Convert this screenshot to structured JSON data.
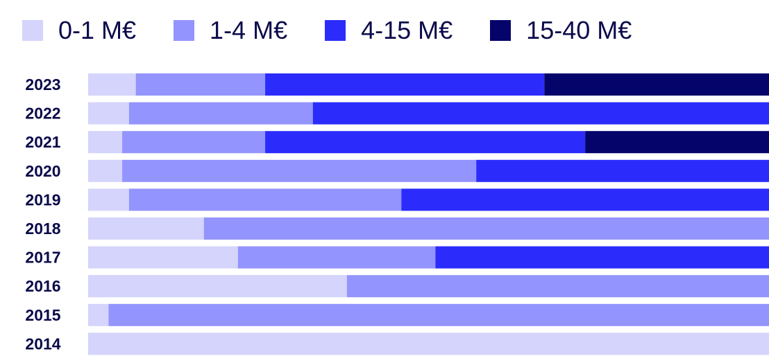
{
  "chart_data": {
    "type": "bar",
    "orientation": "horizontal",
    "stacked": true,
    "categories": [
      "2023",
      "2022",
      "2021",
      "2020",
      "2019",
      "2018",
      "2017",
      "2016",
      "2015",
      "2014"
    ],
    "series": [
      {
        "name": "0-1 M€",
        "color": "#d4d4fc",
        "values": [
          7,
          6,
          5,
          5,
          6,
          17,
          22,
          38,
          3,
          100
        ]
      },
      {
        "name": "1-4 M€",
        "color": "#9394fd",
        "values": [
          19,
          27,
          21,
          52,
          40,
          83,
          29,
          62,
          97,
          0
        ]
      },
      {
        "name": "4-15 M€",
        "color": "#2b2cfb",
        "values": [
          41,
          67,
          47,
          43,
          54,
          0,
          49,
          0,
          0,
          0
        ]
      },
      {
        "name": "15-40 M€",
        "color": "#05046b",
        "values": [
          33,
          0,
          27,
          0,
          0,
          0,
          0,
          0,
          0,
          0
        ]
      }
    ],
    "xlim": [
      0,
      100
    ],
    "legend_position": "top",
    "grid": false
  }
}
